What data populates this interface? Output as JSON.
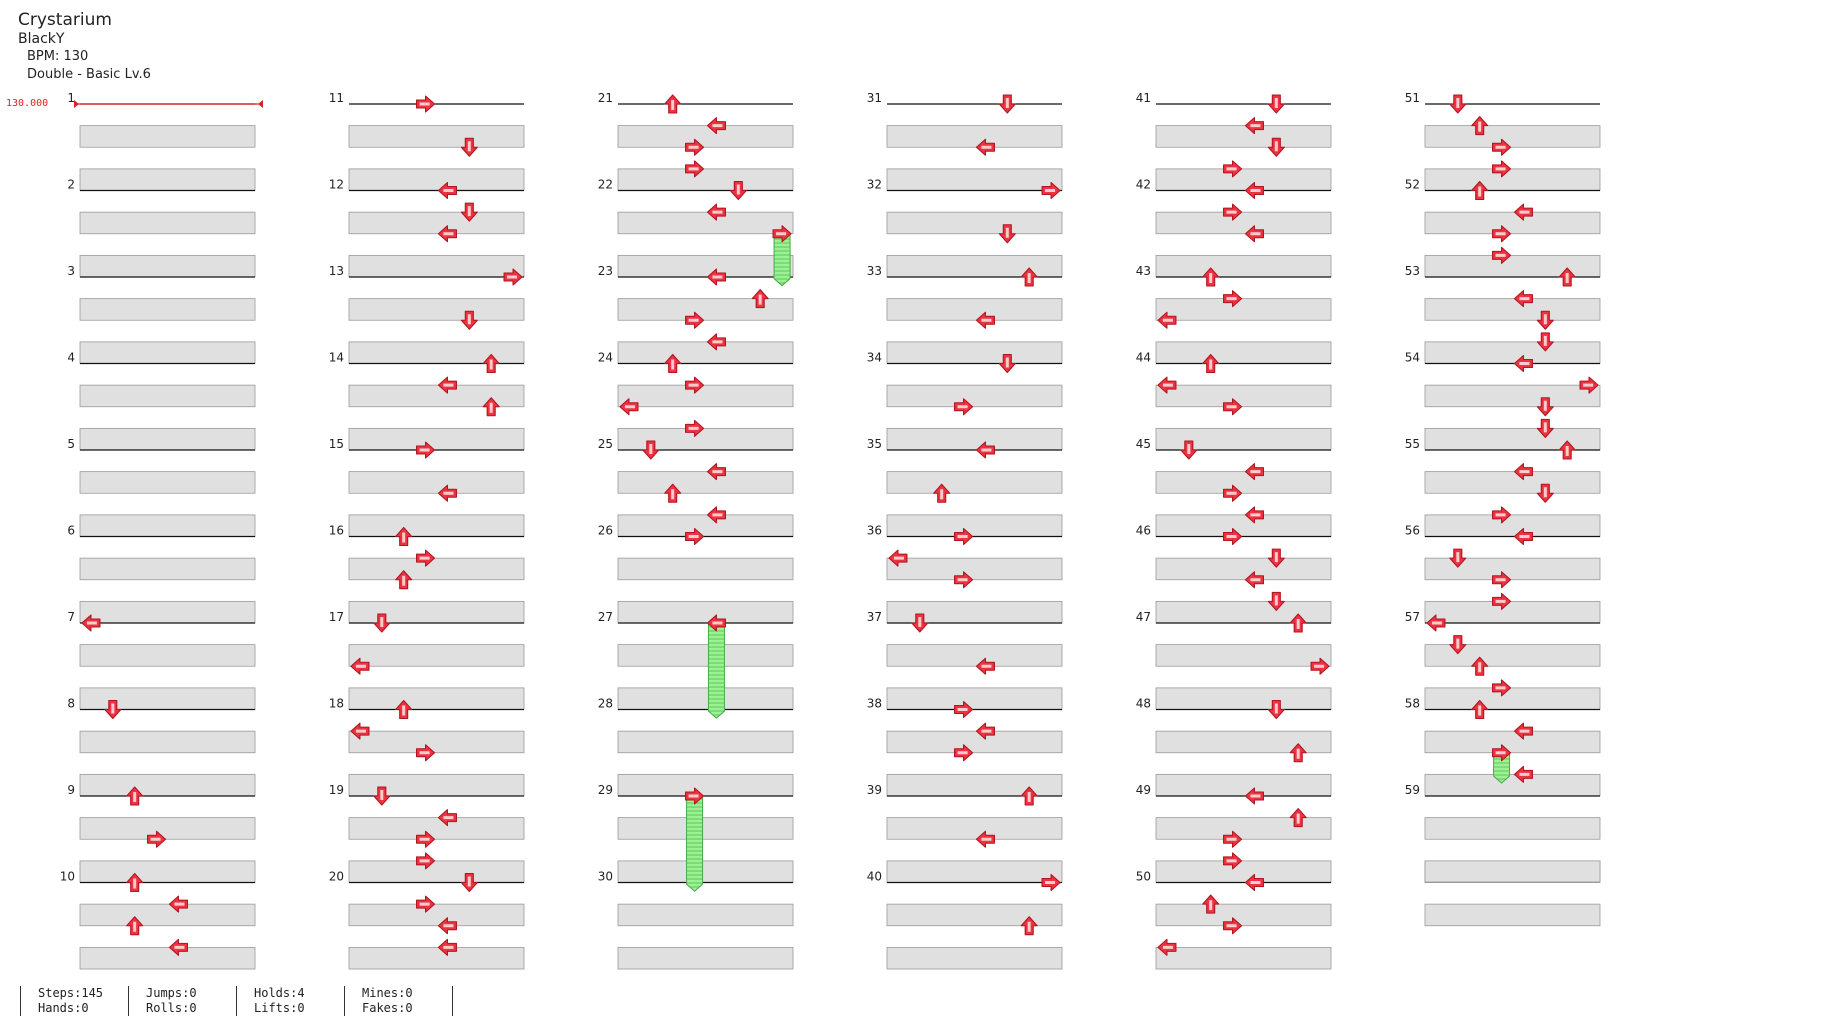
{
  "song": {
    "title": "Crystarium",
    "artist": "BlackY",
    "bpm_text": "BPM: 130",
    "difficulty_text": "Double - Basic Lv.6"
  },
  "bpm_marker": "130.000",
  "measure_labels": [
    "1",
    "2",
    "3",
    "4",
    "5",
    "6",
    "7",
    "8",
    "9",
    "10",
    "11",
    "12",
    "13",
    "14",
    "15",
    "16",
    "17",
    "18",
    "19",
    "20",
    "21",
    "22",
    "23",
    "24",
    "25",
    "26",
    "27",
    "28",
    "29",
    "30",
    "31",
    "32",
    "33",
    "34",
    "35",
    "36",
    "37",
    "38",
    "39",
    "40",
    "41",
    "42",
    "43",
    "44",
    "45",
    "46",
    "47",
    "48",
    "49",
    "50",
    "51",
    "52",
    "53",
    "54",
    "55",
    "56",
    "57",
    "58",
    "59"
  ],
  "stats": {
    "steps": "Steps:145",
    "hands": "Hands:0",
    "jumps": "Jumps:0",
    "rolls": "Rolls:0",
    "holds": "Holds:4",
    "lifts": "Lifts:0",
    "mines": "Mines:0",
    "fakes": "Fakes:0"
  },
  "colors": {
    "arrow": "#ee3340",
    "hold": "#8fea8a",
    "bpm_line": "#e02020",
    "stripe": "#e0e0e0"
  },
  "notes": [
    {
      "m": 7,
      "r": 0,
      "l": 0,
      "d": "left"
    },
    {
      "m": 8,
      "r": 0,
      "l": 1,
      "d": "down"
    },
    {
      "m": 9,
      "r": 0,
      "l": 2,
      "d": "up"
    },
    {
      "m": 9,
      "r": 0.5,
      "l": 3,
      "d": "right"
    },
    {
      "m": 10,
      "r": 0,
      "l": 2,
      "d": "up"
    },
    {
      "m": 10,
      "r": 0.25,
      "l": 4,
      "d": "left"
    },
    {
      "m": 10,
      "r": 0.5,
      "l": 2,
      "d": "up"
    },
    {
      "m": 10,
      "r": 0.75,
      "l": 4,
      "d": "left"
    },
    {
      "m": 11,
      "r": 0,
      "l": 3,
      "d": "right"
    },
    {
      "m": 11,
      "r": 0.5,
      "l": 5,
      "d": "down"
    },
    {
      "m": 12,
      "r": 0,
      "l": 4,
      "d": "left"
    },
    {
      "m": 12,
      "r": 0.25,
      "l": 5,
      "d": "down"
    },
    {
      "m": 12,
      "r": 0.5,
      "l": 4,
      "d": "left"
    },
    {
      "m": 13,
      "r": 0,
      "l": 7,
      "d": "right"
    },
    {
      "m": 13,
      "r": 0.5,
      "l": 5,
      "d": "down"
    },
    {
      "m": 14,
      "r": 0,
      "l": 6,
      "d": "up"
    },
    {
      "m": 14,
      "r": 0.25,
      "l": 4,
      "d": "left"
    },
    {
      "m": 14,
      "r": 0.5,
      "l": 6,
      "d": "up"
    },
    {
      "m": 15,
      "r": 0,
      "l": 3,
      "d": "right"
    },
    {
      "m": 15,
      "r": 0.5,
      "l": 4,
      "d": "left"
    },
    {
      "m": 16,
      "r": 0,
      "l": 2,
      "d": "up"
    },
    {
      "m": 16,
      "r": 0.25,
      "l": 3,
      "d": "right"
    },
    {
      "m": 16,
      "r": 0.5,
      "l": 2,
      "d": "up"
    },
    {
      "m": 17,
      "r": 0,
      "l": 1,
      "d": "down"
    },
    {
      "m": 17,
      "r": 0.5,
      "l": 0,
      "d": "left"
    },
    {
      "m": 18,
      "r": 0,
      "l": 2,
      "d": "up"
    },
    {
      "m": 18,
      "r": 0.25,
      "l": 0,
      "d": "left"
    },
    {
      "m": 18,
      "r": 0.5,
      "l": 3,
      "d": "right"
    },
    {
      "m": 19,
      "r": 0,
      "l": 1,
      "d": "down"
    },
    {
      "m": 19,
      "r": 0.25,
      "l": 4,
      "d": "left"
    },
    {
      "m": 19,
      "r": 0.5,
      "l": 3,
      "d": "right"
    },
    {
      "m": 19,
      "r": 0.75,
      "l": 3,
      "d": "right"
    },
    {
      "m": 20,
      "r": 0,
      "l": 5,
      "d": "down"
    },
    {
      "m": 20,
      "r": 0.25,
      "l": 3,
      "d": "right"
    },
    {
      "m": 20,
      "r": 0.5,
      "l": 4,
      "d": "left"
    },
    {
      "m": 20,
      "r": 0.75,
      "l": 4,
      "d": "left"
    },
    {
      "m": 21,
      "r": 0,
      "l": 2,
      "d": "up"
    },
    {
      "m": 21,
      "r": 0.25,
      "l": 4,
      "d": "left"
    },
    {
      "m": 21,
      "r": 0.5,
      "l": 3,
      "d": "right"
    },
    {
      "m": 21,
      "r": 0.75,
      "l": 3,
      "d": "right"
    },
    {
      "m": 22,
      "r": 0,
      "l": 5,
      "d": "down"
    },
    {
      "m": 22,
      "r": 0.25,
      "l": 4,
      "d": "left"
    },
    {
      "m": 22,
      "r": 0.5,
      "l": 7,
      "d": "right"
    },
    {
      "m": 23,
      "r": 0,
      "l": 4,
      "d": "left"
    },
    {
      "m": 23,
      "r": 0.25,
      "l": 6,
      "d": "up"
    },
    {
      "m": 23,
      "r": 0.5,
      "l": 3,
      "d": "right"
    },
    {
      "m": 23,
      "r": 0.75,
      "l": 4,
      "d": "left"
    },
    {
      "m": 24,
      "r": 0,
      "l": 2,
      "d": "up"
    },
    {
      "m": 24,
      "r": 0.25,
      "l": 3,
      "d": "right"
    },
    {
      "m": 24,
      "r": 0.5,
      "l": 0,
      "d": "left"
    },
    {
      "m": 24,
      "r": 0.75,
      "l": 3,
      "d": "right"
    },
    {
      "m": 25,
      "r": 0,
      "l": 1,
      "d": "down"
    },
    {
      "m": 25,
      "r": 0.25,
      "l": 4,
      "d": "left"
    },
    {
      "m": 25,
      "r": 0.5,
      "l": 2,
      "d": "up"
    },
    {
      "m": 25,
      "r": 0.75,
      "l": 4,
      "d": "left"
    },
    {
      "m": 26,
      "r": 0,
      "l": 3,
      "d": "right"
    },
    {
      "m": 27,
      "r": 0,
      "l": 4,
      "d": "left"
    },
    {
      "m": 29,
      "r": 0,
      "l": 3,
      "d": "right"
    },
    {
      "m": 31,
      "r": 0,
      "l": 5,
      "d": "down"
    },
    {
      "m": 31,
      "r": 0.5,
      "l": 4,
      "d": "left"
    },
    {
      "m": 32,
      "r": 0,
      "l": 7,
      "d": "right"
    },
    {
      "m": 32,
      "r": 0.5,
      "l": 5,
      "d": "down"
    },
    {
      "m": 33,
      "r": 0,
      "l": 6,
      "d": "up"
    },
    {
      "m": 33,
      "r": 0.5,
      "l": 4,
      "d": "left"
    },
    {
      "m": 34,
      "r": 0,
      "l": 5,
      "d": "down"
    },
    {
      "m": 34,
      "r": 0.5,
      "l": 3,
      "d": "right"
    },
    {
      "m": 35,
      "r": 0,
      "l": 4,
      "d": "left"
    },
    {
      "m": 35,
      "r": 0.5,
      "l": 2,
      "d": "up"
    },
    {
      "m": 36,
      "r": 0,
      "l": 3,
      "d": "right"
    },
    {
      "m": 36,
      "r": 0.25,
      "l": 0,
      "d": "left"
    },
    {
      "m": 36,
      "r": 0.5,
      "l": 3,
      "d": "right"
    },
    {
      "m": 37,
      "r": 0,
      "l": 1,
      "d": "down"
    },
    {
      "m": 37,
      "r": 0.5,
      "l": 4,
      "d": "left"
    },
    {
      "m": 38,
      "r": 0,
      "l": 3,
      "d": "right"
    },
    {
      "m": 38,
      "r": 0.25,
      "l": 4,
      "d": "left"
    },
    {
      "m": 38,
      "r": 0.5,
      "l": 3,
      "d": "right"
    },
    {
      "m": 39,
      "r": 0,
      "l": 6,
      "d": "up"
    },
    {
      "m": 39,
      "r": 0.5,
      "l": 4,
      "d": "left"
    },
    {
      "m": 40,
      "r": 0,
      "l": 7,
      "d": "right"
    },
    {
      "m": 40,
      "r": 0.5,
      "l": 6,
      "d": "up"
    },
    {
      "m": 41,
      "r": 0,
      "l": 5,
      "d": "down"
    },
    {
      "m": 41,
      "r": 0.25,
      "l": 4,
      "d": "left"
    },
    {
      "m": 41,
      "r": 0.5,
      "l": 5,
      "d": "down"
    },
    {
      "m": 41,
      "r": 0.75,
      "l": 3,
      "d": "right"
    },
    {
      "m": 42,
      "r": 0,
      "l": 4,
      "d": "left"
    },
    {
      "m": 42,
      "r": 0.25,
      "l": 3,
      "d": "right"
    },
    {
      "m": 42,
      "r": 0.5,
      "l": 4,
      "d": "left"
    },
    {
      "m": 43,
      "r": 0,
      "l": 2,
      "d": "up"
    },
    {
      "m": 43,
      "r": 0.25,
      "l": 3,
      "d": "right"
    },
    {
      "m": 43,
      "r": 0.5,
      "l": 0,
      "d": "left"
    },
    {
      "m": 44,
      "r": 0,
      "l": 2,
      "d": "up"
    },
    {
      "m": 44,
      "r": 0.25,
      "l": 0,
      "d": "left"
    },
    {
      "m": 44,
      "r": 0.5,
      "l": 3,
      "d": "right"
    },
    {
      "m": 45,
      "r": 0,
      "l": 1,
      "d": "down"
    },
    {
      "m": 45,
      "r": 0.25,
      "l": 4,
      "d": "left"
    },
    {
      "m": 45,
      "r": 0.5,
      "l": 3,
      "d": "right"
    },
    {
      "m": 45,
      "r": 0.75,
      "l": 4,
      "d": "left"
    },
    {
      "m": 46,
      "r": 0,
      "l": 3,
      "d": "right"
    },
    {
      "m": 46,
      "r": 0.25,
      "l": 5,
      "d": "down"
    },
    {
      "m": 46,
      "r": 0.5,
      "l": 4,
      "d": "left"
    },
    {
      "m": 46,
      "r": 0.75,
      "l": 5,
      "d": "down"
    },
    {
      "m": 47,
      "r": 0,
      "l": 6,
      "d": "up"
    },
    {
      "m": 47,
      "r": 0.5,
      "l": 7,
      "d": "right"
    },
    {
      "m": 48,
      "r": 0,
      "l": 5,
      "d": "down"
    },
    {
      "m": 48,
      "r": 0.5,
      "l": 6,
      "d": "up"
    },
    {
      "m": 49,
      "r": 0,
      "l": 4,
      "d": "left"
    },
    {
      "m": 49,
      "r": 0.25,
      "l": 6,
      "d": "up"
    },
    {
      "m": 49,
      "r": 0.5,
      "l": 3,
      "d": "right"
    },
    {
      "m": 49,
      "r": 0.75,
      "l": 3,
      "d": "right"
    },
    {
      "m": 50,
      "r": 0,
      "l": 4,
      "d": "left"
    },
    {
      "m": 50,
      "r": 0.25,
      "l": 2,
      "d": "up"
    },
    {
      "m": 50,
      "r": 0.5,
      "l": 3,
      "d": "right"
    },
    {
      "m": 50,
      "r": 0.75,
      "l": 0,
      "d": "left"
    },
    {
      "m": 51,
      "r": 0,
      "l": 1,
      "d": "down"
    },
    {
      "m": 51,
      "r": 0.25,
      "l": 2,
      "d": "up"
    },
    {
      "m": 51,
      "r": 0.5,
      "l": 3,
      "d": "right"
    },
    {
      "m": 51,
      "r": 0.75,
      "l": 3,
      "d": "right"
    },
    {
      "m": 52,
      "r": 0,
      "l": 2,
      "d": "up"
    },
    {
      "m": 52,
      "r": 0.25,
      "l": 4,
      "d": "left"
    },
    {
      "m": 52,
      "r": 0.5,
      "l": 3,
      "d": "right"
    },
    {
      "m": 52,
      "r": 0.75,
      "l": 3,
      "d": "right"
    },
    {
      "m": 53,
      "r": 0,
      "l": 6,
      "d": "up"
    },
    {
      "m": 53,
      "r": 0.25,
      "l": 4,
      "d": "left"
    },
    {
      "m": 53,
      "r": 0.5,
      "l": 5,
      "d": "down"
    },
    {
      "m": 53,
      "r": 0.75,
      "l": 5,
      "d": "down"
    },
    {
      "m": 54,
      "r": 0,
      "l": 4,
      "d": "left"
    },
    {
      "m": 54,
      "r": 0.25,
      "l": 7,
      "d": "right"
    },
    {
      "m": 54,
      "r": 0.5,
      "l": 5,
      "d": "down"
    },
    {
      "m": 54,
      "r": 0.75,
      "l": 5,
      "d": "down"
    },
    {
      "m": 55,
      "r": 0,
      "l": 6,
      "d": "up"
    },
    {
      "m": 55,
      "r": 0.25,
      "l": 4,
      "d": "left"
    },
    {
      "m": 55,
      "r": 0.5,
      "l": 5,
      "d": "down"
    },
    {
      "m": 55,
      "r": 0.75,
      "l": 3,
      "d": "right"
    },
    {
      "m": 56,
      "r": 0,
      "l": 4,
      "d": "left"
    },
    {
      "m": 56,
      "r": 0.25,
      "l": 1,
      "d": "down"
    },
    {
      "m": 56,
      "r": 0.5,
      "l": 3,
      "d": "right"
    },
    {
      "m": 56,
      "r": 0.75,
      "l": 3,
      "d": "right"
    },
    {
      "m": 57,
      "r": 0,
      "l": 0,
      "d": "left"
    },
    {
      "m": 57,
      "r": 0.25,
      "l": 1,
      "d": "down"
    },
    {
      "m": 57,
      "r": 0.5,
      "l": 2,
      "d": "up"
    },
    {
      "m": 57,
      "r": 0.75,
      "l": 3,
      "d": "right"
    },
    {
      "m": 58,
      "r": 0,
      "l": 2,
      "d": "up"
    },
    {
      "m": 58,
      "r": 0.25,
      "l": 4,
      "d": "left"
    },
    {
      "m": 58,
      "r": 0.5,
      "l": 3,
      "d": "right"
    },
    {
      "m": 58,
      "r": 0.75,
      "l": 4,
      "d": "left"
    }
  ],
  "holds": [
    {
      "m": 22,
      "r": 0.5,
      "len": 0.6,
      "l": 7
    },
    {
      "m": 27,
      "r": 0,
      "len": 1.1,
      "l": 4
    },
    {
      "m": 29,
      "r": 0,
      "len": 1.1,
      "l": 3
    },
    {
      "m": 58,
      "r": 0.5,
      "len": 0.35,
      "l": 3
    }
  ]
}
